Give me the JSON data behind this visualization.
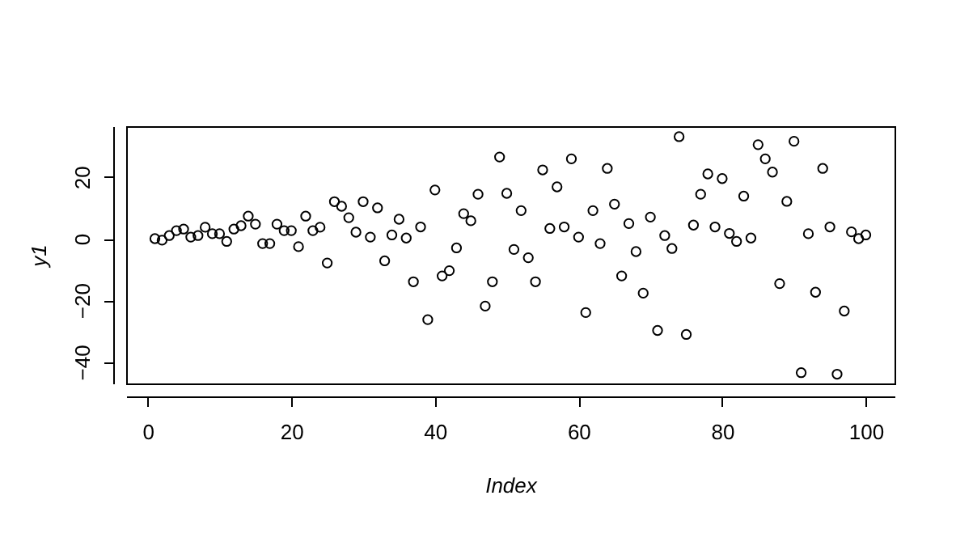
{
  "chart_data": {
    "type": "scatter",
    "xlabel": "Index",
    "ylabel": "y1",
    "marker": "circle",
    "color": "#000000",
    "x": [
      1,
      2,
      3,
      4,
      5,
      6,
      7,
      8,
      9,
      10,
      11,
      12,
      13,
      14,
      15,
      16,
      17,
      18,
      19,
      20,
      21,
      22,
      23,
      24,
      25,
      26,
      27,
      28,
      29,
      30,
      31,
      32,
      33,
      34,
      35,
      36,
      37,
      38,
      39,
      40,
      41,
      42,
      43,
      44,
      45,
      46,
      47,
      48,
      49,
      50,
      51,
      52,
      53,
      54,
      55,
      56,
      57,
      58,
      59,
      60,
      61,
      62,
      63,
      64,
      65,
      66,
      67,
      68,
      69,
      70,
      71,
      72,
      73,
      74,
      75,
      76,
      77,
      78,
      79,
      80,
      81,
      82,
      83,
      84,
      85,
      86,
      87,
      88,
      89,
      90,
      91,
      92,
      93,
      94,
      95,
      96,
      97,
      98,
      99,
      100
    ],
    "values": [
      0,
      -0.5,
      1,
      2.6,
      3.1,
      0.5,
      1,
      3.7,
      1.6,
      1.6,
      -0.9,
      3.1,
      4.2,
      7.3,
      4.7,
      -1.6,
      -1.6,
      4.7,
      2.6,
      2.6,
      -2.6,
      7.3,
      2.6,
      3.7,
      -7.9,
      12,
      10.5,
      6.8,
      2.1,
      12,
      0.5,
      10,
      -7.2,
      1.2,
      6.3,
      0.2,
      -14,
      3.8,
      -26.3,
      15.8,
      -12.1,
      -10.4,
      -3,
      8.1,
      5.8,
      14.4,
      -21.9,
      -14,
      26.5,
      14.7,
      -3.5,
      9.1,
      -6.2,
      -14,
      22.3,
      3.3,
      16.8,
      3.8,
      25.9,
      0.5,
      -24,
      9.1,
      -1.6,
      22.8,
      11.2,
      -12.1,
      4.9,
      -4.2,
      -17.7,
      7,
      -29.8,
      1,
      -3.2,
      33.1,
      -31.1,
      4.4,
      14.4,
      21,
      3.8,
      19.5,
      1.7,
      -0.9,
      13.8,
      0.2,
      30.5,
      25.9,
      21.6,
      -14.6,
      12.1,
      31.6,
      -43.5,
      1.6,
      -17.4,
      22.8,
      3.8,
      -44,
      -23.5,
      2.2,
      0,
      1.2
    ],
    "xlim": [
      -3,
      104
    ],
    "ylim": [
      -47,
      36.5
    ],
    "xticks": [
      0,
      20,
      40,
      60,
      80,
      100
    ],
    "yticks": [
      -40,
      -20,
      0,
      20
    ]
  }
}
